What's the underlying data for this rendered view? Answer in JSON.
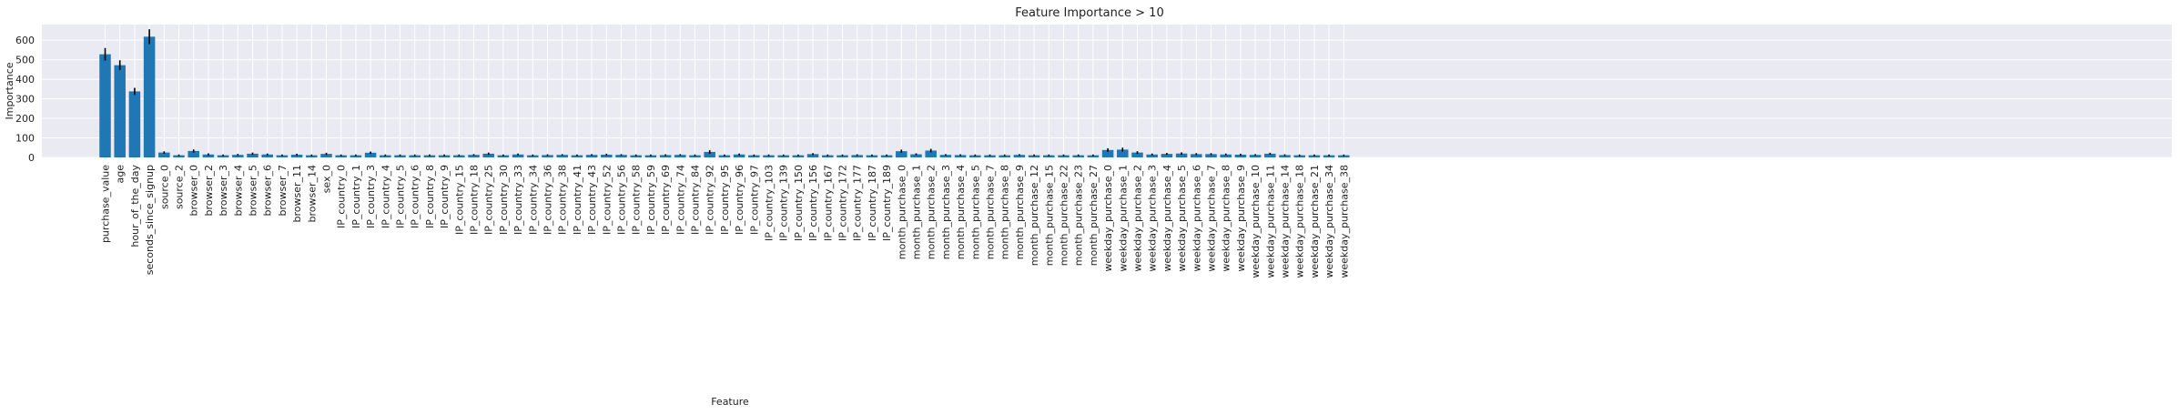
{
  "chart_data": {
    "type": "bar",
    "title": "Feature Importance > 10",
    "xlabel": "Feature",
    "ylabel": "Importance",
    "ylim": [
      0,
      680
    ],
    "yticks": [
      0,
      100,
      200,
      300,
      400,
      500,
      600
    ],
    "grid": true,
    "bar_color": "#1f77b4",
    "error_color": "#000000",
    "background_color": "#eaeaf2",
    "categories": [
      "purchase_value",
      "age",
      "hour_of_the_day",
      "seconds_since_signup",
      "source_0",
      "source_2",
      "browser_0",
      "browser_2",
      "browser_3",
      "browser_4",
      "browser_5",
      "browser_6",
      "browser_7",
      "browser_11",
      "browser_14",
      "sex_0",
      "IP_country_0",
      "IP_country_1",
      "IP_country_3",
      "IP_country_4",
      "IP_country_5",
      "IP_country_6",
      "IP_country_8",
      "IP_country_9",
      "IP_country_15",
      "IP_country_18",
      "IP_country_25",
      "IP_country_30",
      "IP_country_33",
      "IP_country_34",
      "IP_country_36",
      "IP_country_38",
      "IP_country_41",
      "IP_country_43",
      "IP_country_52",
      "IP_country_56",
      "IP_country_58",
      "IP_country_59",
      "IP_country_69",
      "IP_country_74",
      "IP_country_84",
      "IP_country_92",
      "IP_country_95",
      "IP_country_96",
      "IP_country_97",
      "IP_country_103",
      "IP_country_139",
      "IP_country_150",
      "IP_country_156",
      "IP_country_167",
      "IP_country_172",
      "IP_country_177",
      "IP_country_187",
      "IP_country_189",
      "month_purchase_0",
      "month_purchase_1",
      "month_purchase_2",
      "month_purchase_3",
      "month_purchase_4",
      "month_purchase_5",
      "month_purchase_7",
      "month_purchase_8",
      "month_purchase_9",
      "month_purchase_12",
      "month_purchase_15",
      "month_purchase_22",
      "month_purchase_23",
      "month_purchase_27",
      "weekday_purchase_0",
      "weekday_purchase_1",
      "weekday_purchase_2",
      "weekday_purchase_3",
      "weekday_purchase_4",
      "weekday_purchase_5",
      "weekday_purchase_6",
      "weekday_purchase_7",
      "weekday_purchase_8",
      "weekday_purchase_9",
      "weekday_purchase_10",
      "weekday_purchase_11",
      "weekday_purchase_14",
      "weekday_purchase_18",
      "weekday_purchase_21",
      "weekday_purchase_34",
      "weekday_purchase_38"
    ],
    "values": [
      528,
      472,
      338,
      618,
      25,
      11,
      33,
      15,
      11,
      13,
      19,
      15,
      11,
      14,
      11,
      18,
      11,
      11,
      24,
      11,
      11,
      11,
      11,
      11,
      11,
      13,
      19,
      11,
      15,
      11,
      12,
      13,
      11,
      13,
      14,
      13,
      11,
      11,
      12,
      13,
      11,
      28,
      11,
      15,
      11,
      11,
      11,
      11,
      17,
      11,
      11,
      12,
      11,
      11,
      32,
      16,
      35,
      13,
      12,
      11,
      11,
      11,
      13,
      11,
      11,
      11,
      11,
      11,
      38,
      40,
      25,
      15,
      18,
      20,
      17,
      17,
      15,
      14,
      13,
      19,
      12,
      11,
      11,
      11,
      11
    ],
    "errors": [
      32,
      25,
      18,
      38,
      6,
      4,
      8,
      6,
      4,
      5,
      6,
      5,
      4,
      5,
      4,
      6,
      4,
      4,
      6,
      4,
      4,
      4,
      4,
      4,
      4,
      4,
      6,
      4,
      5,
      4,
      4,
      4,
      4,
      4,
      5,
      4,
      4,
      4,
      4,
      4,
      4,
      9,
      4,
      5,
      4,
      4,
      4,
      4,
      5,
      4,
      4,
      4,
      4,
      4,
      8,
      5,
      9,
      4,
      4,
      4,
      4,
      4,
      4,
      4,
      4,
      4,
      4,
      4,
      9,
      10,
      7,
      5,
      5,
      6,
      5,
      5,
      5,
      5,
      4,
      5,
      4,
      4,
      4,
      4,
      4
    ]
  }
}
